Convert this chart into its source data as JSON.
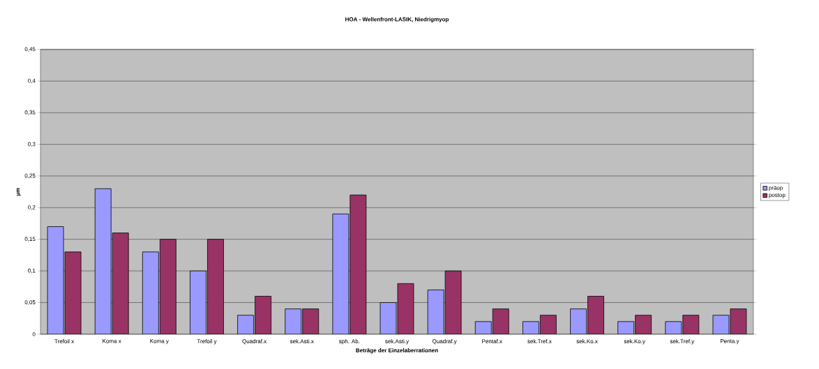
{
  "chart_data": {
    "type": "bar",
    "title": "HOA - Wellenfront-LASIK, Niedrigmyop",
    "xlabel": "Beträge der Einzelaberrationen",
    "ylabel": "µm",
    "categories": [
      "Trefoil x",
      "Koma x",
      "Koma y",
      "Trefoil y",
      "Quadraf.x",
      "sek.Asti.x",
      "sph. Ab.",
      "sek.Asti.y",
      "Quadraf.y",
      "Pentaf.x",
      "sek.Tref.x",
      "sek.Ko.x",
      "sek.Ko.y",
      "sek.Tref.y",
      "Penta.y"
    ],
    "series": [
      {
        "name": "präop",
        "color": "#9999ff",
        "values": [
          0.17,
          0.23,
          0.13,
          0.1,
          0.03,
          0.04,
          0.19,
          0.05,
          0.07,
          0.02,
          0.02,
          0.04,
          0.02,
          0.02,
          0.03
        ]
      },
      {
        "name": "postop",
        "color": "#993366",
        "values": [
          0.13,
          0.16,
          0.15,
          0.15,
          0.06,
          0.04,
          0.22,
          0.08,
          0.1,
          0.04,
          0.03,
          0.06,
          0.03,
          0.03,
          0.04
        ]
      }
    ],
    "ylim": [
      0,
      0.45
    ],
    "yticks": [
      0,
      {
        "value": 0.05,
        "label": "0,05"
      },
      {
        "value": 0.1,
        "label": "0,1"
      },
      {
        "value": 0.15,
        "label": "0,15"
      },
      {
        "value": 0.2,
        "label": "0,2"
      },
      {
        "value": 0.25,
        "label": "0,25"
      },
      {
        "value": 0.3,
        "label": "0,3"
      },
      {
        "value": 0.35,
        "label": "0,35"
      },
      {
        "value": 0.4,
        "label": "0,4"
      },
      {
        "value": 0.45,
        "label": "0,45"
      }
    ],
    "grid": "y",
    "legend": "right"
  }
}
